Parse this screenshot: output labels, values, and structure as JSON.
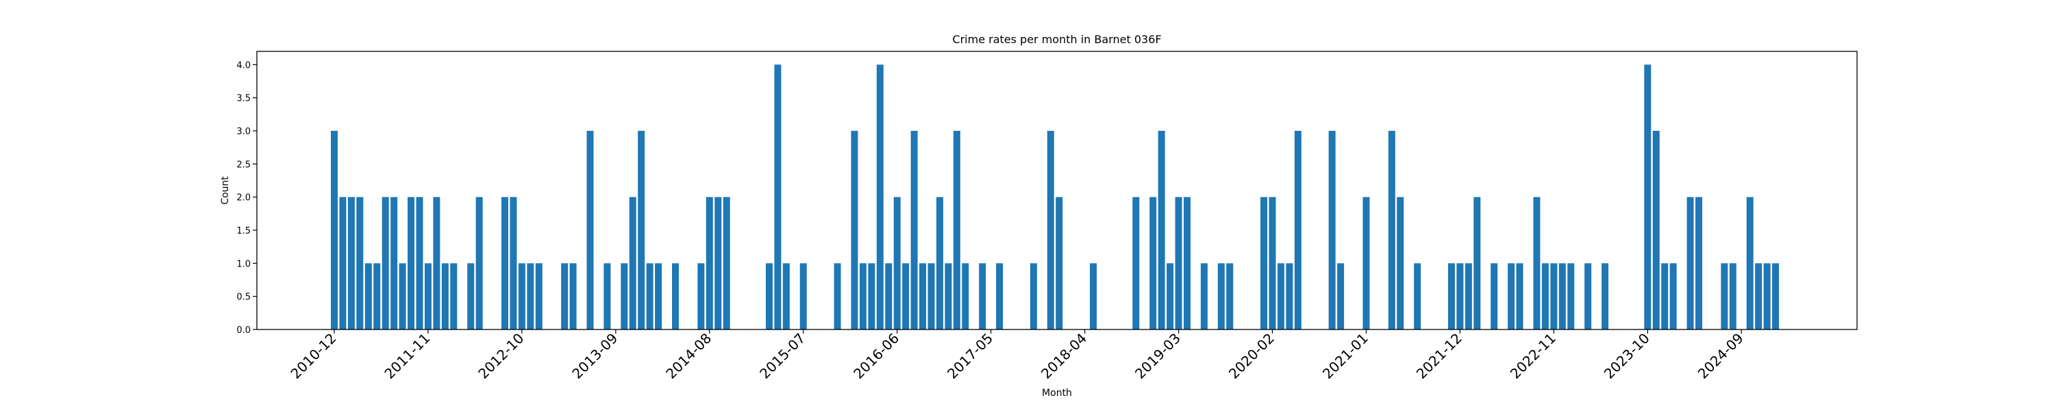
{
  "chart_data": {
    "type": "bar",
    "title": "Crime rates per month in Barnet 036F",
    "xlabel": "Month",
    "ylabel": "Count",
    "ylim": [
      0,
      4.2
    ],
    "y_ticks": [
      "0.0",
      "0.5",
      "1.0",
      "1.5",
      "2.0",
      "2.5",
      "3.0",
      "3.5",
      "4.0"
    ],
    "x_tick_labels": [
      "2010-12",
      "2011-11",
      "2012-10",
      "2013-09",
      "2014-08",
      "2015-07",
      "2016-06",
      "2017-05",
      "2018-04",
      "2019-03",
      "2020-02",
      "2021-01",
      "2021-12",
      "2022-11",
      "2023-10",
      "2024-09"
    ],
    "bar_color": "#1f77b4",
    "grid": false,
    "categories": [
      "2010-12",
      "2011-01",
      "2011-02",
      "2011-03",
      "2011-04",
      "2011-05",
      "2011-06",
      "2011-07",
      "2011-08",
      "2011-09",
      "2011-10",
      "2011-11",
      "2011-12",
      "2012-01",
      "2012-02",
      "2012-04",
      "2012-05",
      "2012-08",
      "2012-09",
      "2012-10",
      "2012-11",
      "2012-12",
      "2013-03",
      "2013-04",
      "2013-06",
      "2013-08",
      "2013-10",
      "2013-11",
      "2013-12",
      "2014-01",
      "2014-02",
      "2014-04",
      "2014-07",
      "2014-08",
      "2014-09",
      "2014-10",
      "2015-03",
      "2015-04",
      "2015-05",
      "2015-07",
      "2015-11",
      "2016-01",
      "2016-02",
      "2016-03",
      "2016-04",
      "2016-05",
      "2016-06",
      "2016-07",
      "2016-08",
      "2016-09",
      "2016-10",
      "2016-11",
      "2016-12",
      "2017-01",
      "2017-02",
      "2017-04",
      "2017-06",
      "2017-10",
      "2017-12",
      "2018-01",
      "2018-05",
      "2018-10",
      "2018-12",
      "2019-01",
      "2019-02",
      "2019-03",
      "2019-04",
      "2019-06",
      "2019-08",
      "2019-09",
      "2020-01",
      "2020-02",
      "2020-03",
      "2020-04",
      "2020-05",
      "2020-09",
      "2020-10",
      "2021-01",
      "2021-04",
      "2021-05",
      "2021-07",
      "2021-11",
      "2021-12",
      "2022-01",
      "2022-02",
      "2022-04",
      "2022-06",
      "2022-07",
      "2022-09",
      "2022-10",
      "2022-11",
      "2022-12",
      "2023-01",
      "2023-03",
      "2023-05",
      "2023-10",
      "2023-11",
      "2023-12",
      "2024-01",
      "2024-03",
      "2024-04",
      "2024-07",
      "2024-08",
      "2024-10",
      "2024-11",
      "2024-12",
      "2025-01"
    ],
    "values": [
      3,
      2,
      2,
      2,
      1,
      1,
      2,
      2,
      1,
      2,
      2,
      1,
      2,
      1,
      1,
      1,
      2,
      2,
      2,
      1,
      1,
      1,
      1,
      1,
      3,
      1,
      1,
      2,
      3,
      1,
      1,
      1,
      1,
      2,
      2,
      2,
      1,
      4,
      1,
      1,
      1,
      3,
      1,
      1,
      4,
      1,
      2,
      1,
      3,
      1,
      1,
      2,
      1,
      3,
      1,
      1,
      1,
      1,
      3,
      2,
      1,
      2,
      2,
      3,
      1,
      2,
      2,
      1,
      1,
      1,
      2,
      2,
      1,
      1,
      3,
      3,
      1,
      2,
      3,
      2,
      1,
      1,
      1,
      1,
      2,
      1,
      1,
      1,
      2,
      1,
      1,
      1,
      1,
      1,
      1,
      4,
      3,
      1,
      1,
      2,
      2,
      1,
      1,
      2,
      1,
      1,
      1
    ]
  }
}
